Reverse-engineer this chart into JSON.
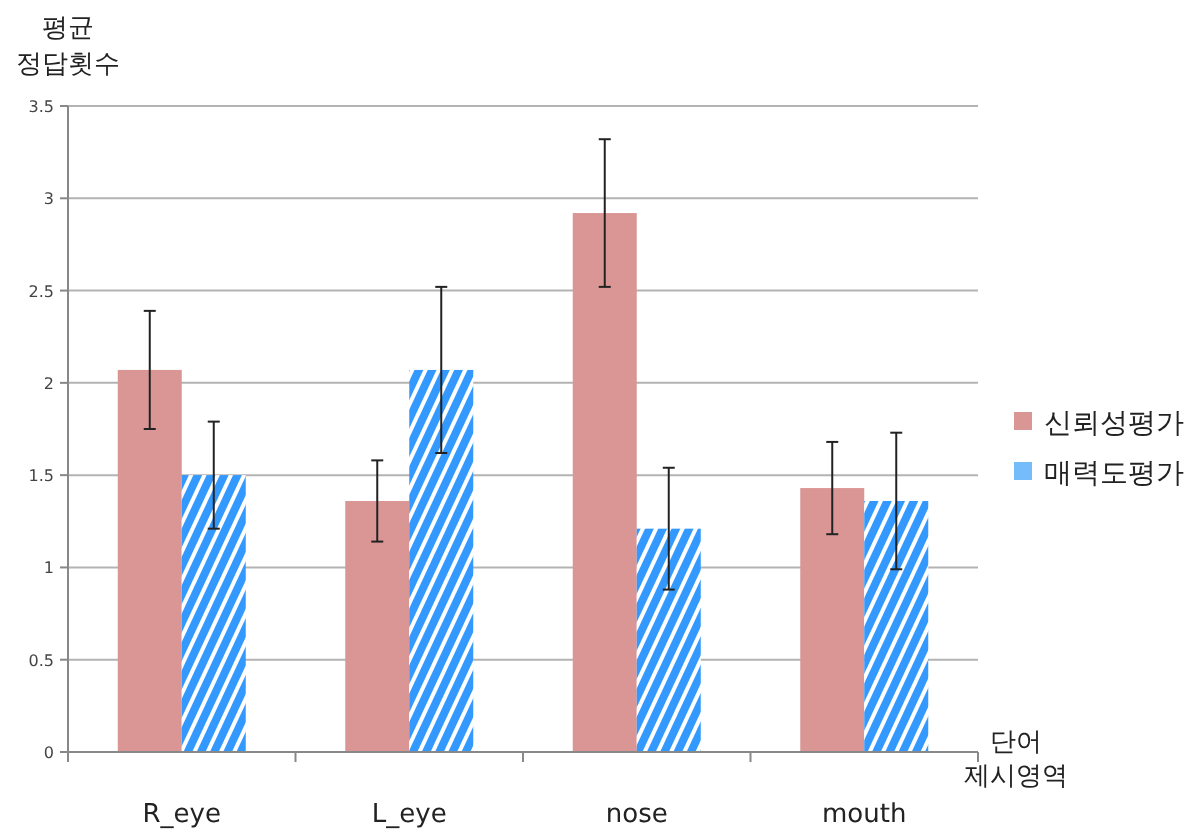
{
  "chart_data": {
    "type": "bar",
    "ylabel": "평균\n정답횟수",
    "xlabel": "단어\n제시영역",
    "categories": [
      "R_eye",
      "L_eye",
      "nose",
      "mouth"
    ],
    "series": [
      {
        "name": "신뢰성평가",
        "color": "#d99694",
        "values": [
          2.07,
          1.36,
          2.92,
          1.43
        ],
        "errors": [
          0.32,
          0.22,
          0.4,
          0.25
        ]
      },
      {
        "name": "매력도평가",
        "color": "#3399ff",
        "values": [
          1.5,
          2.07,
          1.21,
          1.36
        ],
        "errors": [
          0.29,
          0.45,
          0.33,
          0.37
        ]
      }
    ],
    "ylim": [
      0,
      3.5
    ],
    "yticks": [
      0,
      0.5,
      1,
      1.5,
      2,
      2.5,
      3,
      3.5
    ],
    "grid": "y",
    "legend": "right"
  }
}
